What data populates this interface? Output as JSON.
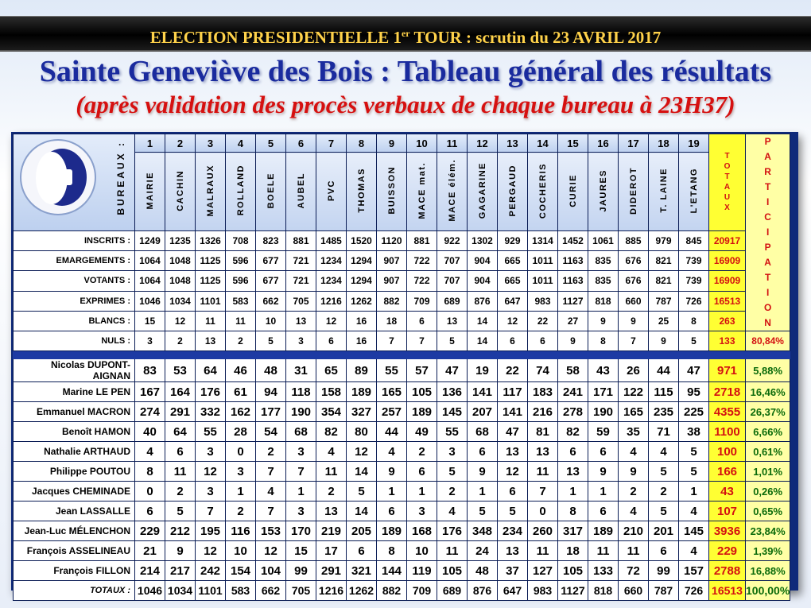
{
  "banner": {
    "text_before": "ELECTION PRESIDENTIELLE 1",
    "sup": "er",
    "text_after": " TOUR : scrutin du 23 AVRIL 2017"
  },
  "title": "Sainte Geneviève des Bois : Tableau général des résultats",
  "subtitle": "(après validation des procès verbaux de chaque bureau à 23H37)",
  "bureaux_label": "BUREAUX :",
  "bureau_numbers": [
    "1",
    "2",
    "3",
    "4",
    "5",
    "6",
    "7",
    "8",
    "9",
    "10",
    "11",
    "12",
    "13",
    "14",
    "15",
    "16",
    "17",
    "18",
    "19"
  ],
  "bureau_names": [
    "MAIRIE",
    "CACHIN",
    "MALRAUX",
    "ROLLAND",
    "BOELE",
    "AUBEL",
    "PVC",
    "THOMAS",
    "BUISSON",
    "MACE mat.",
    "MACE élém.",
    "GAGARINE",
    "PERGAUD",
    "COCHERIS",
    "CURIE",
    "JAURES",
    "DIDEROT",
    "T. LAINE",
    "L'ETANG"
  ],
  "totaux_header": "T\nO\nT\nA\nU\nX",
  "participation_header": "P\nA\nR\nT\nI\nC\nI\nP\nA\nT\nI\nO\nN",
  "stats": [
    {
      "label": "INSCRITS :",
      "values": [
        "1249",
        "1235",
        "1326",
        "708",
        "823",
        "881",
        "1485",
        "1520",
        "1120",
        "881",
        "922",
        "1302",
        "929",
        "1314",
        "1452",
        "1061",
        "885",
        "979",
        "845"
      ],
      "total": "20917",
      "participation": ""
    },
    {
      "label": "EMARGEMENTS :",
      "values": [
        "1064",
        "1048",
        "1125",
        "596",
        "677",
        "721",
        "1234",
        "1294",
        "907",
        "722",
        "707",
        "904",
        "665",
        "1011",
        "1163",
        "835",
        "676",
        "821",
        "739"
      ],
      "total": "16909",
      "participation": ""
    },
    {
      "label": "VOTANTS :",
      "values": [
        "1064",
        "1048",
        "1125",
        "596",
        "677",
        "721",
        "1234",
        "1294",
        "907",
        "722",
        "707",
        "904",
        "665",
        "1011",
        "1163",
        "835",
        "676",
        "821",
        "739"
      ],
      "total": "16909",
      "participation": ""
    },
    {
      "label": "EXPRIMES :",
      "values": [
        "1046",
        "1034",
        "1101",
        "583",
        "662",
        "705",
        "1216",
        "1262",
        "882",
        "709",
        "689",
        "876",
        "647",
        "983",
        "1127",
        "818",
        "660",
        "787",
        "726"
      ],
      "total": "16513",
      "participation": ""
    },
    {
      "label": "BLANCS :",
      "values": [
        "15",
        "12",
        "11",
        "11",
        "10",
        "13",
        "12",
        "16",
        "18",
        "6",
        "13",
        "14",
        "12",
        "22",
        "27",
        "9",
        "9",
        "25",
        "8"
      ],
      "total": "263",
      "participation": ""
    },
    {
      "label": "NULS :",
      "values": [
        "3",
        "2",
        "13",
        "2",
        "5",
        "3",
        "6",
        "16",
        "7",
        "7",
        "5",
        "14",
        "6",
        "6",
        "9",
        "8",
        "7",
        "9",
        "5"
      ],
      "total": "133",
      "participation": "80,84%"
    }
  ],
  "candidates": [
    {
      "name": "Nicolas DUPONT-AIGNAN",
      "values": [
        "83",
        "53",
        "64",
        "46",
        "48",
        "31",
        "65",
        "89",
        "55",
        "57",
        "47",
        "19",
        "22",
        "74",
        "58",
        "43",
        "26",
        "44",
        "47"
      ],
      "total": "971",
      "pct": "5,88%"
    },
    {
      "name": "Marine LE PEN",
      "values": [
        "167",
        "164",
        "176",
        "61",
        "94",
        "118",
        "158",
        "189",
        "165",
        "105",
        "136",
        "141",
        "117",
        "183",
        "241",
        "171",
        "122",
        "115",
        "95"
      ],
      "total": "2718",
      "pct": "16,46%"
    },
    {
      "name": "Emmanuel MACRON",
      "values": [
        "274",
        "291",
        "332",
        "162",
        "177",
        "190",
        "354",
        "327",
        "257",
        "189",
        "145",
        "207",
        "141",
        "216",
        "278",
        "190",
        "165",
        "235",
        "225"
      ],
      "total": "4355",
      "pct": "26,37%"
    },
    {
      "name": "Benoît HAMON",
      "values": [
        "40",
        "64",
        "55",
        "28",
        "54",
        "68",
        "82",
        "80",
        "44",
        "49",
        "55",
        "68",
        "47",
        "81",
        "82",
        "59",
        "35",
        "71",
        "38"
      ],
      "total": "1100",
      "pct": "6,66%"
    },
    {
      "name": "Nathalie ARTHAUD",
      "values": [
        "4",
        "6",
        "3",
        "0",
        "2",
        "3",
        "4",
        "12",
        "4",
        "2",
        "3",
        "6",
        "13",
        "13",
        "6",
        "6",
        "4",
        "4",
        "5"
      ],
      "total": "100",
      "pct": "0,61%"
    },
    {
      "name": "Philippe POUTOU",
      "values": [
        "8",
        "11",
        "12",
        "3",
        "7",
        "7",
        "11",
        "14",
        "9",
        "6",
        "5",
        "9",
        "12",
        "11",
        "13",
        "9",
        "9",
        "5",
        "5"
      ],
      "total": "166",
      "pct": "1,01%"
    },
    {
      "name": "Jacques CHEMINADE",
      "values": [
        "0",
        "2",
        "3",
        "1",
        "4",
        "1",
        "2",
        "5",
        "1",
        "1",
        "2",
        "1",
        "6",
        "7",
        "1",
        "1",
        "2",
        "2",
        "1"
      ],
      "total": "43",
      "pct": "0,26%"
    },
    {
      "name": "Jean LASSALLE",
      "values": [
        "6",
        "5",
        "7",
        "2",
        "7",
        "3",
        "13",
        "14",
        "6",
        "3",
        "4",
        "5",
        "5",
        "0",
        "8",
        "6",
        "4",
        "5",
        "4"
      ],
      "total": "107",
      "pct": "0,65%"
    },
    {
      "name": "Jean-Luc MÉLENCHON",
      "values": [
        "229",
        "212",
        "195",
        "116",
        "153",
        "170",
        "219",
        "205",
        "189",
        "168",
        "176",
        "348",
        "234",
        "260",
        "317",
        "189",
        "210",
        "201",
        "145"
      ],
      "total": "3936",
      "pct": "23,84%"
    },
    {
      "name": "François ASSELINEAU",
      "values": [
        "21",
        "9",
        "12",
        "10",
        "12",
        "15",
        "17",
        "6",
        "8",
        "10",
        "11",
        "24",
        "13",
        "11",
        "18",
        "11",
        "11",
        "6",
        "4"
      ],
      "total": "229",
      "pct": "1,39%"
    },
    {
      "name": "François FILLON",
      "values": [
        "214",
        "217",
        "242",
        "154",
        "104",
        "99",
        "291",
        "321",
        "144",
        "119",
        "105",
        "48",
        "37",
        "127",
        "105",
        "133",
        "72",
        "99",
        "157"
      ],
      "total": "2788",
      "pct": "16,88%"
    }
  ],
  "totals_row": {
    "label": "TOTAUX :",
    "values": [
      "1046",
      "1034",
      "1101",
      "583",
      "662",
      "705",
      "1216",
      "1262",
      "882",
      "709",
      "689",
      "876",
      "647",
      "983",
      "1127",
      "818",
      "660",
      "787",
      "726"
    ],
    "total": "16513",
    "pct": "100,00%"
  }
}
